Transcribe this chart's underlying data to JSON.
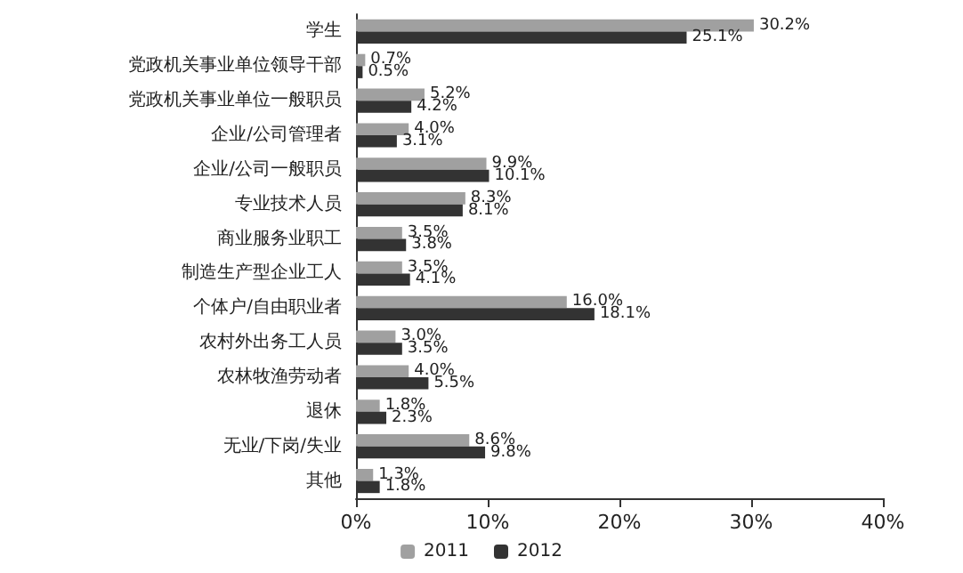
{
  "chart_data": {
    "type": "bar",
    "orientation": "horizontal",
    "categories": [
      "学生",
      "党政机关事业单位领导干部",
      "党政机关事业单位一般职员",
      "企业/公司管理者",
      "企业/公司一般职员",
      "专业技术人员",
      "商业服务业职工",
      "制造生产型企业工人",
      "个体户/自由职业者",
      "农村外出务工人员",
      "农林牧渔劳动者",
      "退休",
      "无业/下岗/失业",
      "其他"
    ],
    "series": [
      {
        "name": "2011",
        "color": "#a0a0a0",
        "values": [
          30.2,
          0.7,
          5.2,
          4.0,
          9.9,
          8.3,
          3.5,
          3.5,
          16.0,
          3.0,
          4.0,
          1.8,
          8.6,
          1.3
        ],
        "value_labels": [
          "30.2%",
          "0.7%",
          "5.2%",
          "4.0%",
          "9.9%",
          "8.3%",
          "3.5%",
          "3.5%",
          "16.0%",
          "3.0%",
          "4.0%",
          "1.8%",
          "8.6%",
          "1.3%"
        ]
      },
      {
        "name": "2012",
        "color": "#333333",
        "values": [
          25.1,
          0.5,
          4.2,
          3.1,
          10.1,
          8.1,
          3.8,
          4.1,
          18.1,
          3.5,
          5.5,
          2.3,
          9.8,
          1.8
        ],
        "value_labels": [
          "25.1%",
          "0.5%",
          "4.2%",
          "3.1%",
          "10.1%",
          "8.1%",
          "3.8%",
          "4.1%",
          "18.1%",
          "3.5%",
          "5.5%",
          "2.3%",
          "9.8%",
          "1.8%"
        ]
      }
    ],
    "xlim": [
      0,
      40
    ],
    "xticks": [
      {
        "value": 0,
        "label": "0%"
      },
      {
        "value": 10,
        "label": "10%"
      },
      {
        "value": 20,
        "label": "20%"
      },
      {
        "value": 30,
        "label": "30%"
      },
      {
        "value": 40,
        "label": "40%"
      }
    ],
    "grid": false,
    "legend": "bottom"
  }
}
